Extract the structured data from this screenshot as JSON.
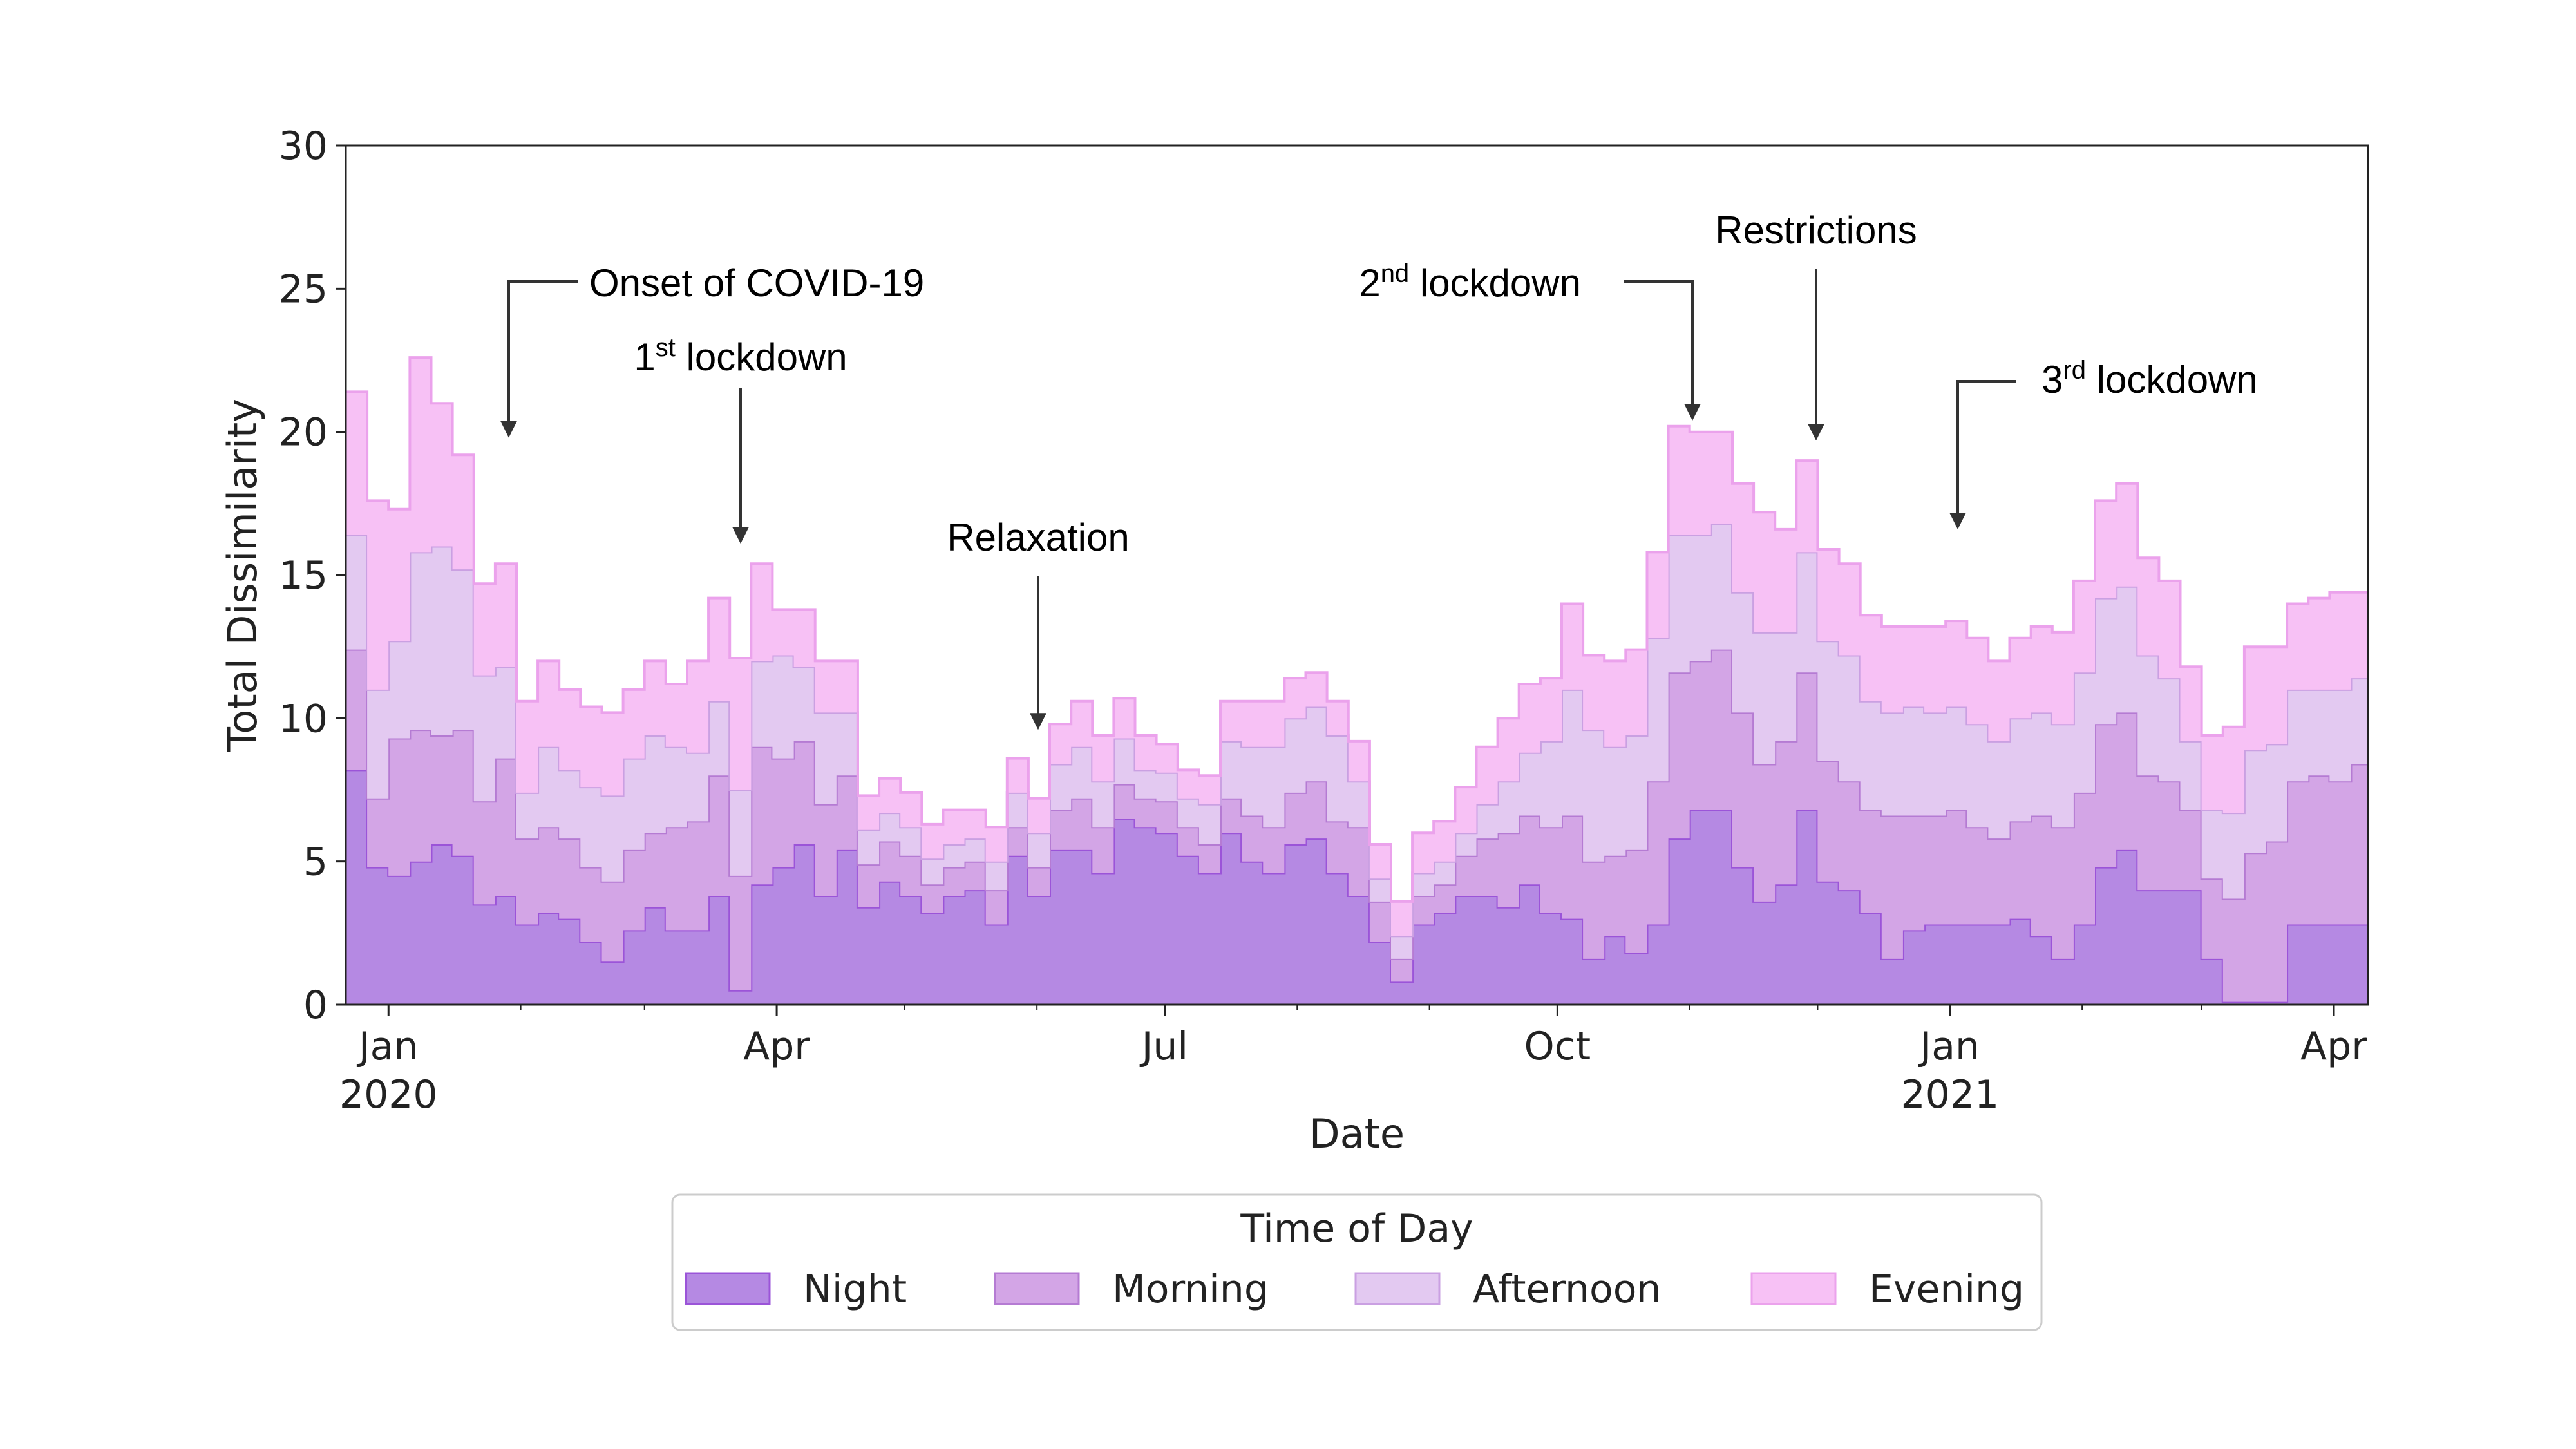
{
  "chart_data": {
    "type": "area",
    "stacked": true,
    "title": "",
    "xlabel": "Date",
    "ylabel": "Total Dissimilarity",
    "ylim": [
      0,
      30
    ],
    "yticks": [
      0,
      5,
      10,
      15,
      20,
      25,
      30
    ],
    "xlim": [
      "2019-12-22",
      "2021-04-09"
    ],
    "xticks": [
      {
        "date": "2020-01-01",
        "label": "Jan",
        "year": "2020"
      },
      {
        "date": "2020-04-01",
        "label": "Apr",
        "year": ""
      },
      {
        "date": "2020-07-01",
        "label": "Jul",
        "year": ""
      },
      {
        "date": "2020-10-01",
        "label": "Oct",
        "year": ""
      },
      {
        "date": "2021-01-01",
        "label": "Jan",
        "year": "2021"
      },
      {
        "date": "2021-04-01",
        "label": "Apr",
        "year": ""
      }
    ],
    "x": [
      "2019-12-22",
      "2019-12-27",
      "2020-01-01",
      "2020-01-06",
      "2020-01-11",
      "2020-01-16",
      "2020-01-21",
      "2020-01-26",
      "2020-01-31",
      "2020-02-05",
      "2020-02-10",
      "2020-02-15",
      "2020-02-20",
      "2020-02-25",
      "2020-03-01",
      "2020-03-06",
      "2020-03-11",
      "2020-03-16",
      "2020-03-21",
      "2020-03-26",
      "2020-03-31",
      "2020-04-05",
      "2020-04-10",
      "2020-04-15",
      "2020-04-20",
      "2020-04-25",
      "2020-04-30",
      "2020-05-05",
      "2020-05-10",
      "2020-05-15",
      "2020-05-20",
      "2020-05-25",
      "2020-05-30",
      "2020-06-04",
      "2020-06-09",
      "2020-06-14",
      "2020-06-19",
      "2020-06-24",
      "2020-06-29",
      "2020-07-04",
      "2020-07-09",
      "2020-07-14",
      "2020-07-19",
      "2020-07-24",
      "2020-07-29",
      "2020-08-03",
      "2020-08-08",
      "2020-08-13",
      "2020-08-18",
      "2020-08-23",
      "2020-08-28",
      "2020-09-02",
      "2020-09-07",
      "2020-09-12",
      "2020-09-17",
      "2020-09-22",
      "2020-09-27",
      "2020-10-02",
      "2020-10-07",
      "2020-10-12",
      "2020-10-17",
      "2020-10-22",
      "2020-10-27",
      "2020-11-01",
      "2020-11-06",
      "2020-11-11",
      "2020-11-16",
      "2020-11-21",
      "2020-11-26",
      "2020-12-01",
      "2020-12-06",
      "2020-12-11",
      "2020-12-16",
      "2020-12-21",
      "2020-12-26",
      "2020-12-31",
      "2021-01-05",
      "2021-01-10",
      "2021-01-15",
      "2021-01-20",
      "2021-01-25",
      "2021-01-30",
      "2021-02-04",
      "2021-02-09",
      "2021-02-14",
      "2021-02-19",
      "2021-02-24",
      "2021-03-01",
      "2021-03-06",
      "2021-03-11",
      "2021-03-16",
      "2021-03-21",
      "2021-03-26",
      "2021-03-31",
      "2021-04-05",
      "2021-04-09"
    ],
    "series": [
      {
        "name": "Night",
        "color": "#b589e3",
        "line": "#9b54d8",
        "values": [
          8.2,
          4.8,
          4.5,
          5.0,
          5.6,
          5.2,
          3.5,
          3.8,
          2.8,
          3.2,
          3.0,
          2.2,
          1.5,
          2.6,
          3.4,
          2.6,
          2.6,
          3.8,
          0.5,
          4.2,
          4.8,
          5.6,
          3.8,
          5.4,
          3.4,
          4.3,
          3.8,
          3.2,
          3.8,
          4.0,
          2.8,
          5.2,
          3.8,
          5.4,
          5.4,
          4.6,
          6.5,
          6.2,
          6.0,
          5.2,
          4.6,
          6.0,
          5.0,
          4.6,
          5.6,
          5.8,
          4.6,
          3.8,
          2.2,
          0.8,
          2.8,
          3.2,
          3.8,
          3.8,
          3.4,
          4.2,
          3.2,
          3.0,
          1.6,
          2.4,
          1.8,
          2.8,
          5.8,
          6.8,
          6.8,
          4.8,
          3.6,
          4.2,
          6.8,
          4.3,
          4.0,
          3.2,
          1.6,
          2.6,
          2.8,
          2.8,
          2.8,
          2.8,
          3.0,
          2.4,
          1.6,
          2.8,
          4.8,
          5.4,
          4.0,
          4.0,
          4.0,
          1.6,
          0.1,
          0.1,
          0.1,
          2.8,
          2.8,
          2.8,
          2.8,
          2.8
        ]
      },
      {
        "name": "Morning",
        "color": "#d3a5e6",
        "line": "#b57bd3",
        "values": [
          4.2,
          2.4,
          4.8,
          4.6,
          3.8,
          4.4,
          3.6,
          4.8,
          3.0,
          3.0,
          2.8,
          2.6,
          2.8,
          2.8,
          2.6,
          3.6,
          3.8,
          4.2,
          4.0,
          4.8,
          3.8,
          3.6,
          3.2,
          2.6,
          1.5,
          1.4,
          1.4,
          1.0,
          1.0,
          1.0,
          1.2,
          1.0,
          1.0,
          1.4,
          1.8,
          1.6,
          1.2,
          1.0,
          1.1,
          1.0,
          1.0,
          1.2,
          1.6,
          1.6,
          1.8,
          2.0,
          1.8,
          2.4,
          1.4,
          0.8,
          1.0,
          1.0,
          1.4,
          2.0,
          2.6,
          2.4,
          3.0,
          3.6,
          3.4,
          2.8,
          3.6,
          5.0,
          5.8,
          5.2,
          5.6,
          5.4,
          4.8,
          5.0,
          4.8,
          4.2,
          3.8,
          3.6,
          5.0,
          4.0,
          3.8,
          4.0,
          3.4,
          3.0,
          3.4,
          4.2,
          4.6,
          4.6,
          5.0,
          4.8,
          4.0,
          3.8,
          2.8,
          2.8,
          3.6,
          5.2,
          5.6,
          5.0,
          5.2,
          5.0,
          5.6,
          6.6
        ]
      },
      {
        "name": "Afternoon",
        "color": "#e3c9f1",
        "line": "#caa0e2",
        "values": [
          4.0,
          3.8,
          3.4,
          6.2,
          6.6,
          5.6,
          4.4,
          3.2,
          1.6,
          2.8,
          2.4,
          2.8,
          3.0,
          3.2,
          3.4,
          2.8,
          2.4,
          2.6,
          3.0,
          3.0,
          3.6,
          2.6,
          3.2,
          2.2,
          1.2,
          1.0,
          1.0,
          0.9,
          0.8,
          0.8,
          1.0,
          1.2,
          1.2,
          1.6,
          1.8,
          1.6,
          1.6,
          1.0,
          1.0,
          1.0,
          1.4,
          2.0,
          2.4,
          2.8,
          2.6,
          2.6,
          3.0,
          1.6,
          0.8,
          0.8,
          0.8,
          0.8,
          0.8,
          1.2,
          1.8,
          2.2,
          3.0,
          4.4,
          4.6,
          3.8,
          4.0,
          5.0,
          4.8,
          4.4,
          4.4,
          4.2,
          4.6,
          3.8,
          4.2,
          4.2,
          4.4,
          3.8,
          3.6,
          3.8,
          3.6,
          3.6,
          3.6,
          3.4,
          3.6,
          3.6,
          3.6,
          4.2,
          4.4,
          4.4,
          4.2,
          3.6,
          2.4,
          2.4,
          3.0,
          3.6,
          3.4,
          3.2,
          3.0,
          3.2,
          3.0,
          3.2
        ]
      },
      {
        "name": "Evening",
        "color": "#f7c1f5",
        "line": "#eba2ec",
        "values": [
          5.0,
          6.6,
          4.6,
          6.8,
          5.0,
          4.0,
          3.2,
          3.6,
          3.2,
          3.0,
          2.8,
          2.8,
          2.9,
          2.4,
          2.6,
          2.2,
          3.2,
          3.6,
          4.6,
          3.4,
          1.6,
          2.0,
          1.8,
          1.8,
          1.2,
          1.2,
          1.2,
          1.2,
          1.2,
          1.0,
          1.2,
          1.2,
          1.2,
          1.4,
          1.6,
          1.6,
          1.4,
          1.2,
          1.0,
          1.0,
          1.0,
          1.4,
          1.6,
          1.6,
          1.4,
          1.2,
          1.2,
          1.4,
          1.2,
          1.2,
          1.4,
          1.4,
          1.6,
          2.0,
          2.2,
          2.4,
          2.2,
          3.0,
          2.6,
          3.0,
          3.0,
          3.0,
          3.8,
          3.6,
          3.2,
          3.8,
          4.2,
          3.6,
          3.2,
          3.2,
          3.2,
          3.0,
          3.0,
          2.8,
          3.0,
          3.0,
          3.0,
          2.8,
          2.8,
          3.0,
          3.2,
          3.2,
          3.4,
          3.6,
          3.4,
          3.4,
          2.6,
          2.6,
          3.0,
          3.6,
          3.4,
          3.0,
          3.2,
          3.4,
          3.0,
          3.4
        ]
      }
    ],
    "legend": {
      "title": "Time of Day",
      "position": "bottom-center"
    },
    "annotations": [
      {
        "text": "Onset of COVID-19",
        "sup": "",
        "date": "2020-01-30",
        "y_arrow_tip": 20.0
      },
      {
        "text": " lockdown",
        "prefix": "1",
        "sup": "st",
        "date": "2020-03-25",
        "y_arrow_tip": 16.3
      },
      {
        "text": "Relaxation",
        "sup": "",
        "date": "2020-06-01",
        "y_arrow_tip": 9.8
      },
      {
        "text": " lockdown",
        "prefix": "2",
        "sup": "nd",
        "date": "2020-11-01",
        "y_arrow_tip": 20.6
      },
      {
        "text": "Restrictions",
        "sup": "",
        "date": "2020-11-30",
        "y_arrow_tip": 19.9
      },
      {
        "text": " lockdown",
        "prefix": "3",
        "sup": "rd",
        "date": "2021-01-05",
        "y_arrow_tip": 16.8
      }
    ]
  }
}
